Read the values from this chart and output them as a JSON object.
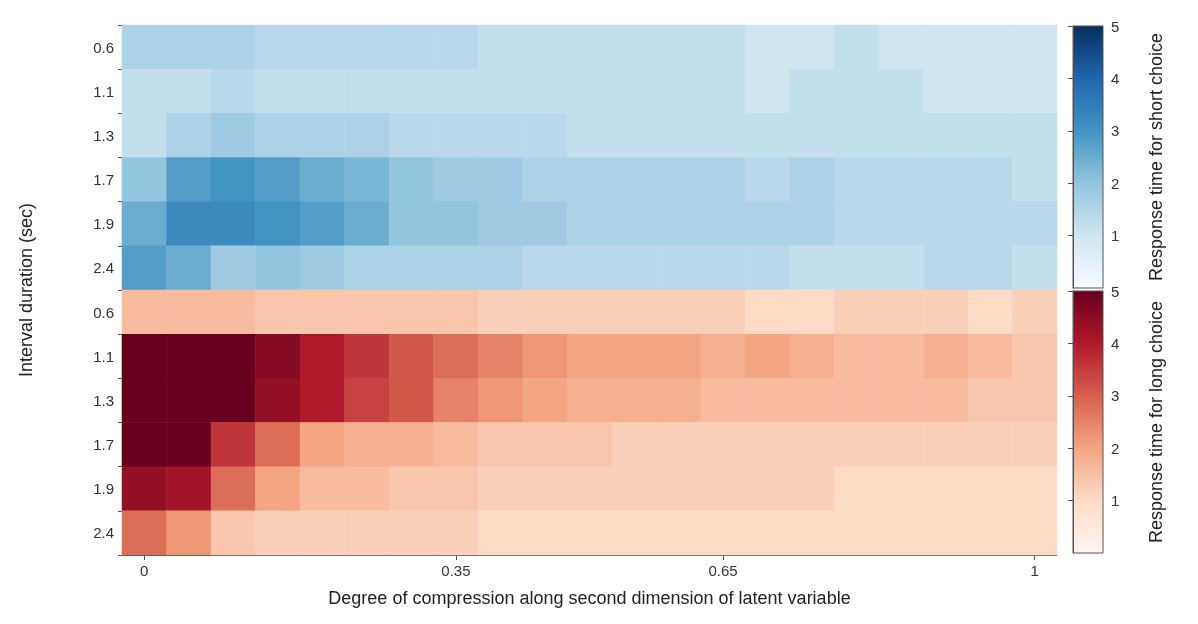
{
  "chart_data": [
    {
      "type": "heatmap",
      "ylabel": "Interval duration (sec)",
      "clabel": "Response time for short choice",
      "tick_labels": "y",
      "categories": [
        "0",
        null,
        null,
        null,
        null,
        null,
        null,
        "0.35",
        null,
        null,
        null,
        null,
        null,
        "0.65",
        null,
        null,
        null,
        null,
        null,
        null,
        "1"
      ],
      "y_categories": [
        "0.6",
        "1.1",
        "1.3",
        "1.7",
        "1.9",
        "2.4"
      ],
      "cells": [
        [
          1.6,
          1.6,
          1.6,
          1.4,
          1.4,
          1.4,
          1.4,
          1.4,
          1.2,
          1.2,
          1.2,
          1.2,
          1.2,
          1.2,
          1.0,
          1.0,
          1.2,
          1.0,
          1.0,
          1.0,
          1.0
        ],
        [
          1.2,
          1.2,
          1.4,
          1.2,
          1.2,
          1.2,
          1.2,
          1.2,
          1.2,
          1.2,
          1.2,
          1.2,
          1.2,
          1.2,
          1.0,
          1.2,
          1.2,
          1.2,
          1.0,
          1.0,
          1.0
        ],
        [
          1.2,
          1.6,
          1.8,
          1.6,
          1.6,
          1.6,
          1.4,
          1.4,
          1.4,
          1.4,
          1.2,
          1.2,
          1.2,
          1.2,
          1.2,
          1.2,
          1.2,
          1.2,
          1.2,
          1.2,
          1.2
        ],
        [
          2.0,
          2.8,
          3.0,
          2.8,
          2.5,
          2.3,
          2.0,
          1.8,
          1.8,
          1.6,
          1.6,
          1.6,
          1.6,
          1.6,
          1.4,
          1.6,
          1.4,
          1.4,
          1.4,
          1.4,
          1.2
        ],
        [
          2.5,
          3.2,
          3.2,
          3.0,
          2.8,
          2.5,
          2.0,
          2.0,
          1.8,
          1.8,
          1.6,
          1.6,
          1.6,
          1.6,
          1.6,
          1.6,
          1.4,
          1.4,
          1.4,
          1.4,
          1.4
        ],
        [
          2.8,
          2.5,
          1.8,
          2.0,
          1.8,
          1.6,
          1.6,
          1.6,
          1.6,
          1.4,
          1.4,
          1.4,
          1.4,
          1.4,
          1.4,
          1.2,
          1.2,
          1.2,
          1.4,
          1.4,
          1.2
        ]
      ],
      "clim": [
        0,
        5
      ],
      "cticks": [
        1,
        2,
        3,
        4,
        5
      ]
    },
    {
      "type": "heatmap",
      "xlabel": "Degree of compression along second dimension of latent variable",
      "clabel": "Response time for long choice",
      "categories": [
        "0",
        null,
        null,
        null,
        null,
        null,
        null,
        "0.35",
        null,
        null,
        null,
        null,
        null,
        "0.65",
        null,
        null,
        null,
        null,
        null,
        null,
        "1"
      ],
      "y_categories": [
        "0.6",
        "1.1",
        "1.3",
        "1.7",
        "1.9",
        "2.4"
      ],
      "cells": [
        [
          1.6,
          1.6,
          1.6,
          1.4,
          1.4,
          1.4,
          1.4,
          1.4,
          1.2,
          1.2,
          1.2,
          1.2,
          1.2,
          1.2,
          1.0,
          1.0,
          1.2,
          1.2,
          1.2,
          1.0,
          1.2
        ],
        [
          5.0,
          5.0,
          5.0,
          4.6,
          4.0,
          3.6,
          3.1,
          2.8,
          2.5,
          2.2,
          2.0,
          2.0,
          2.0,
          1.8,
          2.0,
          1.8,
          1.6,
          1.6,
          1.8,
          1.6,
          1.4
        ],
        [
          5.0,
          5.0,
          5.0,
          4.4,
          4.0,
          3.4,
          3.1,
          2.5,
          2.2,
          2.0,
          1.8,
          1.8,
          1.8,
          1.6,
          1.6,
          1.6,
          1.6,
          1.6,
          1.6,
          1.4,
          1.4
        ],
        [
          5.0,
          5.0,
          3.6,
          2.8,
          2.0,
          1.8,
          1.8,
          1.6,
          1.4,
          1.4,
          1.4,
          1.2,
          1.2,
          1.2,
          1.2,
          1.2,
          1.2,
          1.2,
          1.2,
          1.2,
          1.2
        ],
        [
          4.4,
          4.2,
          2.8,
          2.0,
          1.6,
          1.6,
          1.4,
          1.4,
          1.2,
          1.2,
          1.2,
          1.2,
          1.2,
          1.2,
          1.2,
          1.2,
          1.0,
          1.0,
          1.0,
          1.0,
          1.0
        ],
        [
          2.8,
          2.2,
          1.4,
          1.2,
          1.2,
          1.2,
          1.2,
          1.2,
          1.0,
          1.0,
          1.0,
          1.0,
          1.0,
          1.0,
          1.0,
          1.0,
          1.0,
          1.0,
          1.0,
          1.0,
          1.0
        ]
      ],
      "clim": [
        0,
        5
      ],
      "cticks": [
        1,
        2,
        3,
        4,
        5
      ]
    }
  ]
}
